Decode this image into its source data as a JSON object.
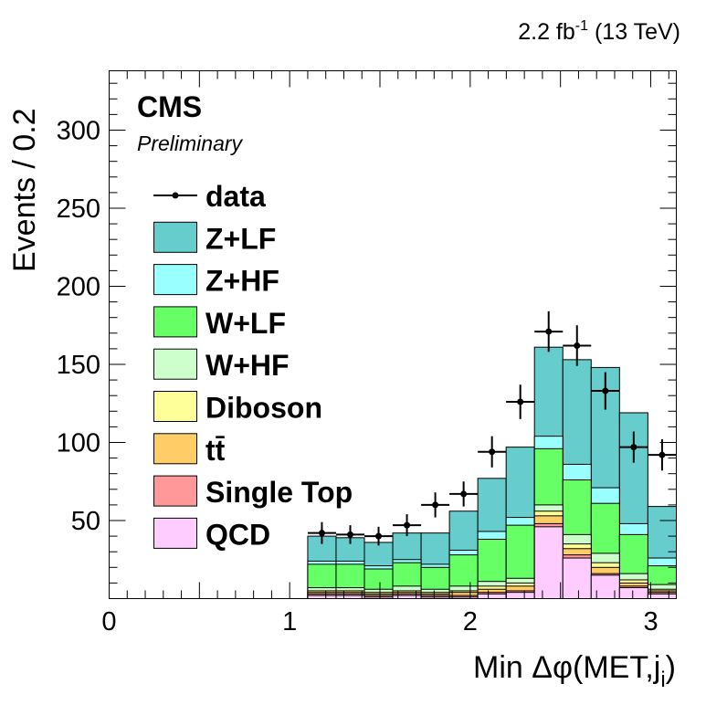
{
  "chart_data": {
    "type": "stacked-histogram",
    "lumi_label": "2.2 fb",
    "lumi_sup": "-1",
    "lumi_energy": " (13 TeV)",
    "experiment": "CMS",
    "status": "Preliminary",
    "ylabel": "Events / 0.2",
    "xlabel": "Min Δφ(MET,j",
    "xlabel_sub": "i",
    "xlabel_close": ")",
    "xlim": [
      0,
      3.1416
    ],
    "ylim": [
      0,
      338
    ],
    "x_ticks": [
      0,
      1,
      2,
      3
    ],
    "x_tick_labels": [
      "0",
      "1",
      "2",
      "3"
    ],
    "y_ticks": [
      50,
      100,
      150,
      200,
      250,
      300
    ],
    "y_tick_labels": [
      "50",
      "100",
      "150",
      "200",
      "250",
      "300"
    ],
    "bin_edges": [
      1.1,
      1.257,
      1.414,
      1.571,
      1.728,
      1.885,
      2.042,
      2.199,
      2.356,
      2.513,
      2.67,
      2.827,
      2.984,
      3.1416
    ],
    "series": [
      {
        "name": "QCD",
        "color": "#ffccff",
        "values": [
          2,
          2,
          1,
          2,
          1,
          1,
          3,
          4,
          46,
          26,
          15,
          7,
          3
        ]
      },
      {
        "name": "Single Top",
        "color": "#ff9999",
        "values": [
          1,
          1,
          1,
          1,
          1,
          1,
          1,
          1,
          2,
          2,
          1,
          1,
          1
        ]
      },
      {
        "name": "tt̄",
        "color": "#ffcc66",
        "values": [
          1,
          1,
          1,
          1,
          1,
          2,
          2,
          3,
          5,
          4,
          4,
          2,
          1
        ]
      },
      {
        "name": "Diboson",
        "color": "#ffff99",
        "values": [
          1,
          1,
          1,
          1,
          1,
          1,
          2,
          2,
          3,
          3,
          3,
          2,
          1
        ]
      },
      {
        "name": "W+HF",
        "color": "#ccffcc",
        "values": [
          2,
          2,
          2,
          3,
          2,
          3,
          3,
          3,
          4,
          6,
          6,
          4,
          3
        ]
      },
      {
        "name": "W+LF",
        "color": "#66ff66",
        "values": [
          15,
          15,
          13,
          15,
          14,
          20,
          27,
          34,
          36,
          35,
          32,
          25,
          12
        ]
      },
      {
        "name": "Z+HF",
        "color": "#99ffff",
        "values": [
          2,
          2,
          2,
          2,
          2,
          3,
          5,
          5,
          8,
          10,
          10,
          7,
          5
        ]
      },
      {
        "name": "Z+LF",
        "color": "#66cccc",
        "values": [
          16,
          15,
          15,
          17,
          20,
          25,
          34,
          45,
          57,
          67,
          77,
          71,
          33
        ]
      }
    ],
    "data": {
      "name": "data",
      "values": [
        42,
        41,
        40,
        47,
        60,
        67,
        94,
        126,
        171,
        162,
        133,
        97,
        92
      ],
      "errors": [
        7,
        6,
        6,
        7,
        8,
        8,
        10,
        11,
        13,
        13,
        12,
        10,
        10
      ]
    },
    "legend": {
      "position": "top-left",
      "entries": [
        "data",
        "Z+LF",
        "Z+HF",
        "W+LF",
        "W+HF",
        "Diboson",
        "tt̄",
        "Single Top",
        "QCD"
      ]
    }
  }
}
